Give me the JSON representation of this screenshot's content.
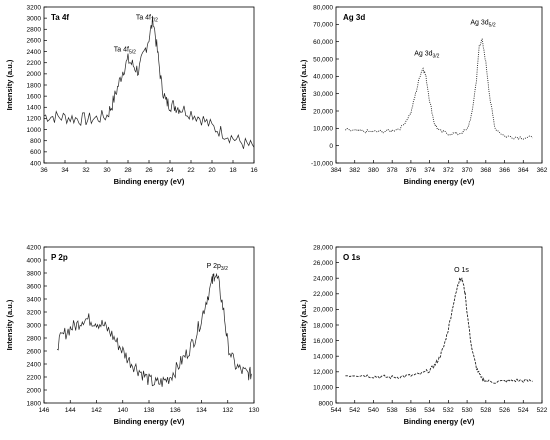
{
  "chart_data": [
    {
      "type": "line",
      "title": "Ta 4f",
      "xlabel": "Binding energy (eV)",
      "ylabel": "Intensity (a.u.)",
      "xlim": [
        36,
        16
      ],
      "ylim": [
        400,
        3200
      ],
      "xticks": [
        "36",
        "34",
        "32",
        "30",
        "28",
        "26",
        "24",
        "22",
        "20",
        "18",
        "16"
      ],
      "yticks": [
        "400",
        "600",
        "800",
        "1000",
        "1200",
        "1400",
        "1600",
        "1800",
        "2000",
        "2200",
        "2400",
        "2600",
        "2800",
        "3000",
        "3200"
      ],
      "annotations": [
        {
          "main": "Ta 4f",
          "sub": "7/2",
          "x": 26.2,
          "y": 2980
        },
        {
          "main": "Ta 4f",
          "sub": "5/2",
          "x": 28.3,
          "y": 2400
        }
      ],
      "style": "noisy",
      "series": [
        {
          "x": [
            36,
            35,
            34,
            33,
            32,
            31,
            30,
            29.5,
            29,
            28.5,
            28,
            27.5,
            27,
            26.5,
            26,
            25.6,
            25.2,
            24.8,
            24.4,
            24,
            23.5,
            23,
            22,
            21,
            20,
            19,
            18,
            17,
            16
          ],
          "y": [
            1250,
            1230,
            1220,
            1200,
            1180,
            1200,
            1250,
            1450,
            1750,
            2050,
            2250,
            2150,
            2050,
            2350,
            2650,
            2980,
            2400,
            1800,
            1500,
            1450,
            1420,
            1380,
            1300,
            1200,
            1050,
            950,
            850,
            750,
            680
          ]
        }
      ]
    },
    {
      "type": "line",
      "title": "Ag 3d",
      "xlabel": "Binding energy (eV)",
      "ylabel": "Intensity (a.u.)",
      "xlim": [
        384,
        362
      ],
      "ylim": [
        -10000,
        80000
      ],
      "xticks": [
        "384",
        "382",
        "380",
        "378",
        "376",
        "374",
        "372",
        "370",
        "368",
        "366",
        "364",
        "362"
      ],
      "yticks": [
        "-10,000",
        "0",
        "10,000",
        "20,000",
        "30,000",
        "40,000",
        "50,000",
        "60,000",
        "70,000",
        "80,000"
      ],
      "annotations": [
        {
          "main": "Ag 3d",
          "sub": "3/2",
          "x": 374.3,
          "y": 52000
        },
        {
          "main": "Ag 3d",
          "sub": "5/2",
          "x": 368.3,
          "y": 70000
        }
      ],
      "style": "dotted",
      "series": [
        {
          "x": [
            383,
            382,
            381,
            380,
            379,
            378,
            377,
            376,
            375.5,
            375,
            374.7,
            374.4,
            374,
            373.5,
            373,
            372,
            371,
            370,
            369.5,
            369,
            368.7,
            368.4,
            368,
            367.5,
            367,
            366,
            365,
            364,
            363
          ],
          "y": [
            9000,
            8500,
            8200,
            8000,
            8200,
            8700,
            10500,
            19000,
            30000,
            41000,
            45000,
            40000,
            26000,
            13000,
            8500,
            7000,
            6800,
            9000,
            18000,
            38000,
            58000,
            61000,
            48000,
            25000,
            10000,
            5500,
            5000,
            4700,
            4500
          ]
        }
      ]
    },
    {
      "type": "line",
      "title": "P 2p",
      "xlabel": "Binding energy (eV)",
      "ylabel": "Intensity (a.u.)",
      "xlim": [
        146,
        130
      ],
      "ylim": [
        1800,
        4200
      ],
      "xticks": [
        "146",
        "144",
        "142",
        "140",
        "138",
        "136",
        "134",
        "132",
        "130"
      ],
      "yticks": [
        "1800",
        "2000",
        "2200",
        "2400",
        "2600",
        "2800",
        "3000",
        "3200",
        "3400",
        "3600",
        "3800",
        "4000",
        "4200"
      ],
      "annotations": [
        {
          "main": "P 2p",
          "sub": "3/2",
          "x": 132.8,
          "y": 3880
        }
      ],
      "style": "noisy",
      "series": [
        {
          "x": [
            145,
            144.5,
            144,
            143.5,
            143,
            142.5,
            142,
            141.5,
            141,
            140.5,
            140,
            139.5,
            139,
            138.5,
            138,
            137.5,
            137,
            136.5,
            136,
            135.5,
            135,
            134.5,
            134,
            133.6,
            133.2,
            133,
            132.7,
            132.3,
            132,
            131.5,
            131,
            130.5,
            130.2
          ],
          "y": [
            2700,
            2850,
            2950,
            3000,
            3100,
            3080,
            3050,
            3000,
            2900,
            2750,
            2600,
            2450,
            2350,
            2250,
            2150,
            2100,
            2120,
            2180,
            2300,
            2450,
            2600,
            2800,
            3100,
            3400,
            3650,
            3800,
            3650,
            3200,
            2700,
            2400,
            2300,
            2250,
            2250
          ]
        }
      ]
    },
    {
      "type": "line",
      "title": "O 1s",
      "xlabel": "Binding energy (eV)",
      "ylabel": "Intensity (a.u.)",
      "xlim": [
        544,
        522
      ],
      "ylim": [
        8000,
        28000
      ],
      "xticks": [
        "544",
        "542",
        "540",
        "538",
        "536",
        "534",
        "532",
        "530",
        "528",
        "526",
        "524",
        "522"
      ],
      "yticks": [
        "8000",
        "10,000",
        "12,000",
        "14,000",
        "16,000",
        "18,000",
        "20,000",
        "22,000",
        "24,000",
        "26,000",
        "28,000"
      ],
      "annotations": [
        {
          "main": "O 1s",
          "sub": "",
          "x": 530.6,
          "y": 24800
        }
      ],
      "style": "dashed",
      "series": [
        {
          "x": [
            543,
            542,
            541,
            540,
            539,
            538,
            537,
            536,
            535,
            534,
            533.5,
            533,
            532.5,
            532,
            531.5,
            531,
            530.8,
            530.5,
            530.2,
            530,
            529.5,
            529,
            528.5,
            528,
            527,
            526,
            525,
            524,
            523
          ],
          "y": [
            11500,
            11600,
            11550,
            11400,
            11350,
            11300,
            11400,
            11500,
            11700,
            12200,
            12800,
            13700,
            15200,
            17500,
            20500,
            23000,
            24000,
            23800,
            22000,
            19500,
            15000,
            12500,
            11200,
            10800,
            10700,
            10800,
            10900,
            10850,
            10800
          ]
        }
      ]
    }
  ]
}
